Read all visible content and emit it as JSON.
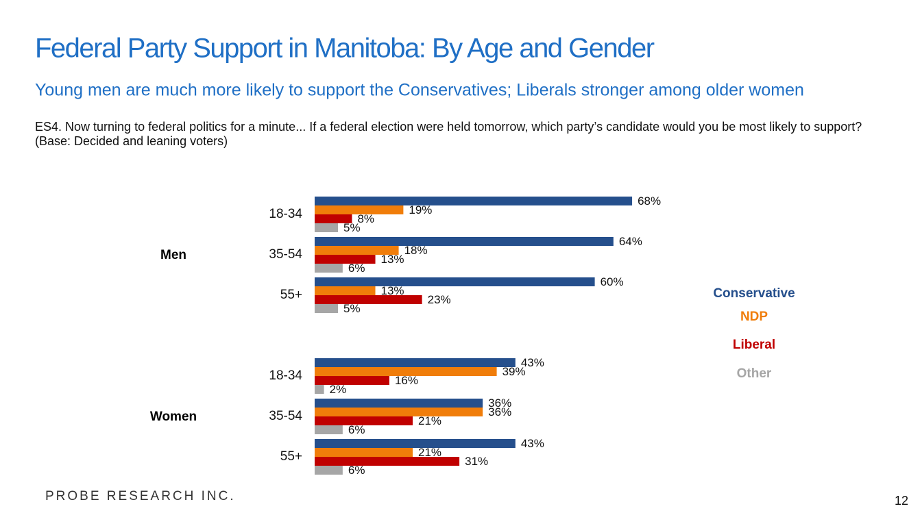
{
  "header": {
    "title": "Federal Party Support in Manitoba: By Age and Gender",
    "subtitle": "Young men are much more likely to support the Conservatives; Liberals stronger among older women",
    "question": "ES4. Now turning to federal politics for a minute... If a federal election were held tomorrow, which party’s candidate would you be most likely to support? (Base: Decided and leaning voters)"
  },
  "chart_data": {
    "type": "bar",
    "orientation": "horizontal",
    "groups": [
      {
        "label": "Men",
        "categories": [
          "18-34",
          "35-54",
          "55+"
        ]
      },
      {
        "label": "Women",
        "categories": [
          "18-34",
          "35-54",
          "55+"
        ]
      }
    ],
    "series": [
      {
        "name": "Conservative",
        "color": "#254f8c",
        "values": [
          68,
          64,
          60,
          43,
          36,
          43
        ],
        "value_labels": [
          "68%",
          "64%",
          "60%",
          "43%",
          "36%",
          "43%"
        ]
      },
      {
        "name": "NDP",
        "color": "#f07d0a",
        "values": [
          19,
          18,
          13,
          39,
          36,
          21
        ],
        "value_labels": [
          "19%",
          "18%",
          "13%",
          "39%",
          "36%",
          "21%"
        ]
      },
      {
        "name": "Liberal",
        "color": "#c00000",
        "values": [
          8,
          13,
          23,
          16,
          21,
          31
        ],
        "value_labels": [
          "8%",
          "13%",
          "23%",
          "16%",
          "21%",
          "31%"
        ]
      },
      {
        "name": "Other",
        "color": "#a6a6a6",
        "values": [
          5,
          6,
          5,
          2,
          6,
          6
        ],
        "value_labels": [
          "5%",
          "6%",
          "5%",
          "2%",
          "6%",
          "6%"
        ]
      }
    ]
  },
  "footer": {
    "logo": "PROBE RESEARCH INC.",
    "page_number": "12"
  }
}
